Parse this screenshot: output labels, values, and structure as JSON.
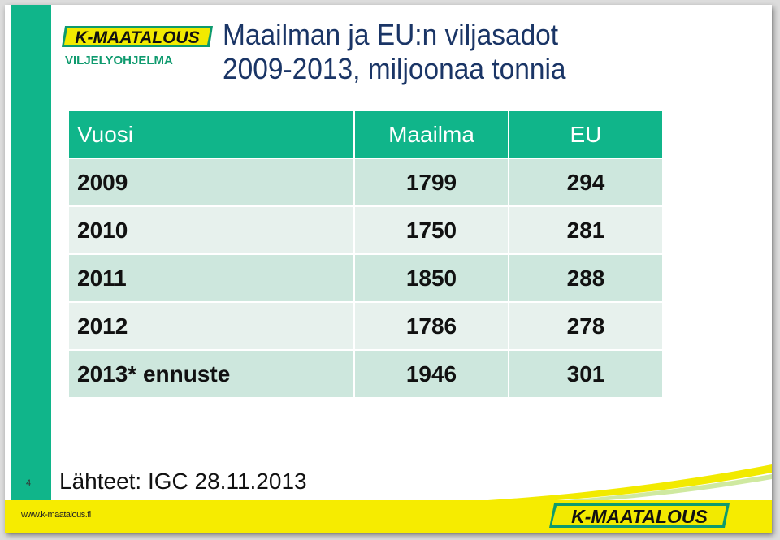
{
  "title": {
    "line1": "Maailman ja EU:n viljasadot",
    "line2": "2009-2013, miljoonaa tonnia"
  },
  "logo": {
    "brand": "K-MAATALOUS",
    "subtitle": "VILJELYOHJELMA"
  },
  "table": {
    "headers": {
      "year": "Vuosi",
      "world": "Maailma",
      "eu": "EU"
    },
    "rows": [
      {
        "year": "2009",
        "world": "1799",
        "eu": "294"
      },
      {
        "year": "2010",
        "world": "1750",
        "eu": "281"
      },
      {
        "year": "2011",
        "world": "1850",
        "eu": "288"
      },
      {
        "year": "2012",
        "world": "1786",
        "eu": "278"
      },
      {
        "year": "2013* ennuste",
        "world": "1946",
        "eu": "301"
      }
    ]
  },
  "source": "Lähteet: IGC 28.11.2013",
  "slide_number": "4",
  "footer": {
    "url": "www.k-maatalous.fi",
    "brand": "K-MAATALOUS"
  },
  "colors": {
    "accent_green": "#10b58a",
    "row_dark": "#cde7dd",
    "row_light": "#e7f1ed",
    "title_blue": "#1a3566",
    "footer_yellow": "#f6ec00"
  }
}
